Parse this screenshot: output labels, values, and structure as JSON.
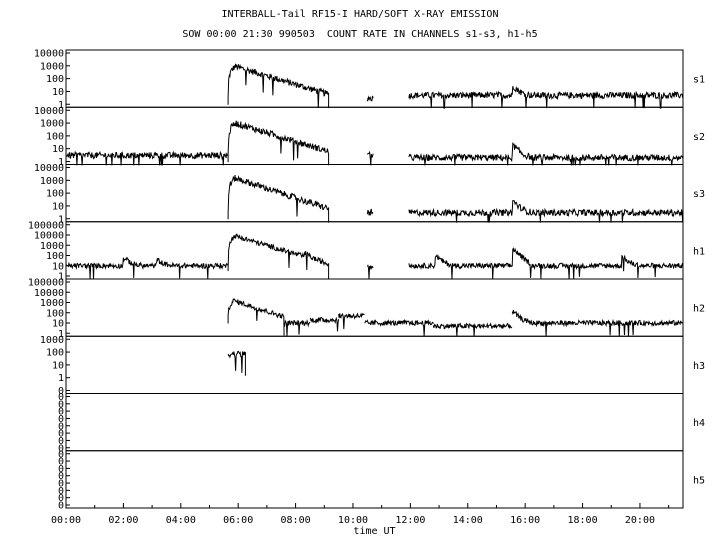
{
  "title": "INTERBALL-Tail RF15-I HARD/SOFT X-RAY EMISSION",
  "subtitle": "SOW 00:00 21:30 990503  COUNT RATE IN CHANNELS s1-s3, h1-h5",
  "chart_data": {
    "type": "line",
    "title": "INTERBALL-Tail RF15-I HARD/SOFT X-RAY EMISSION",
    "subtitle": "SOW 00:00 21:30 990503  COUNT RATE IN CHANNELS s1-s3, h1-h5",
    "xlabel": "time UT",
    "xlim_hours": [
      0,
      21.5
    ],
    "x_ticks": [
      "00:00",
      "02:00",
      "04:00",
      "06:00",
      "08:00",
      "10:00",
      "12:00",
      "14:00",
      "16:00",
      "18:00",
      "20:00"
    ],
    "y_scale": "log",
    "grid": false,
    "panels": [
      {
        "name": "s1",
        "y_ticks": [
          "10000",
          "1000",
          "100",
          "10",
          "1"
        ],
        "segments": [
          {
            "start": 5.65,
            "end": 9.15,
            "level": 3,
            "peak": 900,
            "peak_time": 5.9,
            "decay_to": 6
          },
          {
            "start": 10.5,
            "end": 10.7,
            "level": 3
          },
          {
            "start": 11.95,
            "end": 21.5,
            "level": 5,
            "bumps": [
              [
                15.6,
                20
              ]
            ]
          }
        ]
      },
      {
        "name": "s2",
        "y_ticks": [
          "10000",
          "1000",
          "100",
          "10",
          "1"
        ],
        "segments": [
          {
            "start": 0,
            "end": 5.65,
            "level": 3
          },
          {
            "start": 5.65,
            "end": 9.15,
            "level": 3,
            "peak": 1000,
            "peak_time": 5.9,
            "decay_to": 6
          },
          {
            "start": 10.5,
            "end": 10.7,
            "level": 3
          },
          {
            "start": 11.95,
            "end": 21.5,
            "level": 2,
            "bumps": [
              [
                15.6,
                15
              ]
            ]
          }
        ]
      },
      {
        "name": "s3",
        "y_ticks": [
          "10000",
          "1000",
          "100",
          "10",
          "1"
        ],
        "segments": [
          {
            "start": 5.65,
            "end": 9.15,
            "level": 3,
            "peak": 1500,
            "peak_time": 5.9,
            "decay_to": 6
          },
          {
            "start": 10.5,
            "end": 10.7,
            "level": 3
          },
          {
            "start": 11.95,
            "end": 21.5,
            "level": 3,
            "bumps": [
              [
                15.6,
                20
              ]
            ]
          }
        ]
      },
      {
        "name": "h1",
        "y_ticks": [
          "100000",
          "10000",
          "1000",
          "100",
          "10",
          "1"
        ],
        "segments": [
          {
            "start": 0,
            "end": 5.65,
            "level": 10,
            "bumps": [
              [
                2.05,
                40
              ],
              [
                3.2,
                25
              ]
            ]
          },
          {
            "start": 5.65,
            "end": 9.15,
            "level": 10,
            "peak": 8000,
            "peak_time": 5.9,
            "decay_to": 15,
            "bumps": [
              [
                8.35,
                80
              ]
            ]
          },
          {
            "start": 10.5,
            "end": 10.7,
            "level": 10
          },
          {
            "start": 11.95,
            "end": 21.5,
            "level": 10,
            "bumps": [
              [
                12.9,
                80
              ],
              [
                15.6,
                400
              ],
              [
                19.4,
                60
              ]
            ]
          }
        ]
      },
      {
        "name": "h2",
        "y_ticks": [
          "100000",
          "10000",
          "1000",
          "100",
          "10",
          "1"
        ],
        "segments": [
          {
            "start": 5.65,
            "end": 7.6,
            "level": 30,
            "peak": 1500,
            "peak_time": 5.85,
            "decay_to": 40
          },
          {
            "start": 7.6,
            "end": 8.5,
            "level": 10
          },
          {
            "start": 8.5,
            "end": 9.5,
            "level": 20
          },
          {
            "start": 9.5,
            "end": 10.4,
            "level": 50
          },
          {
            "start": 10.4,
            "end": 11.6,
            "level": 10
          },
          {
            "start": 11.6,
            "end": 12.8,
            "level": 10
          },
          {
            "start": 12.8,
            "end": 15.55,
            "level": 5
          },
          {
            "start": 15.55,
            "end": 18.3,
            "level": 10,
            "bumps": [
              [
                15.6,
                100
              ]
            ]
          },
          {
            "start": 18.3,
            "end": 21.5,
            "level": 10
          }
        ]
      },
      {
        "name": "h3",
        "y_ticks": [
          "1000",
          "100",
          "10",
          "1",
          "0"
        ],
        "segments": [
          {
            "start": 5.65,
            "end": 6.25,
            "level": 70
          }
        ]
      },
      {
        "name": "h4",
        "y_ticks": [
          "0",
          "0",
          "0",
          "0",
          "0",
          "0",
          "0",
          "0"
        ],
        "segments": []
      },
      {
        "name": "h5",
        "y_ticks": [
          "0",
          "0",
          "0",
          "0",
          "0",
          "0",
          "0",
          "0"
        ],
        "segments": []
      }
    ]
  }
}
